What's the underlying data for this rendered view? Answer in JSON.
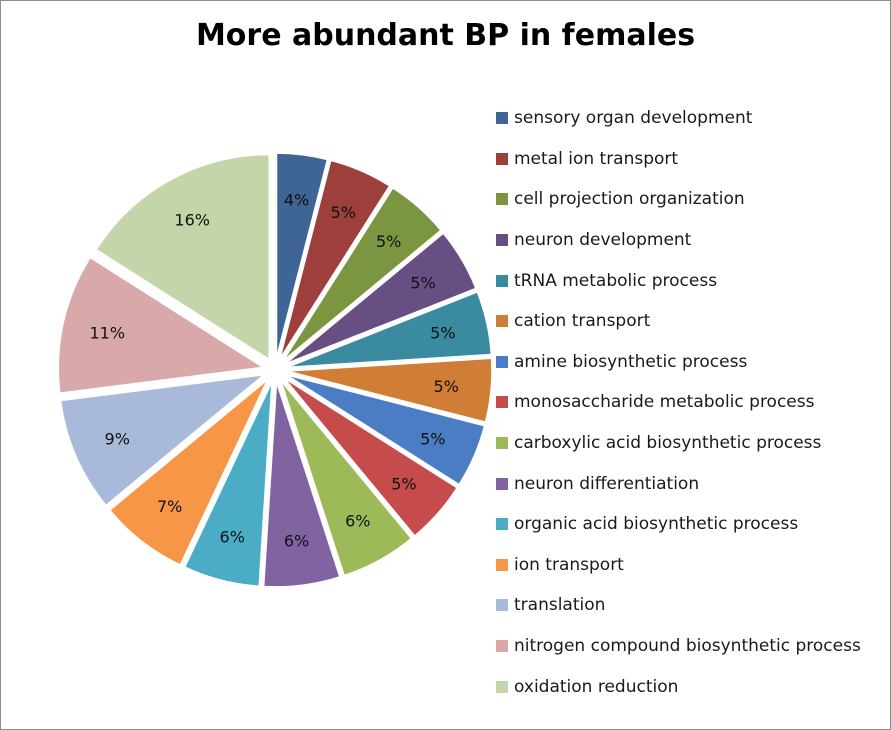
{
  "chart_data": {
    "type": "pie",
    "title": "More abundant BP in females",
    "exploded": true,
    "legend_position": "right",
    "slices": [
      {
        "name": "sensory organ development",
        "value": 4,
        "label": "4%",
        "color": "#3e6596"
      },
      {
        "name": "metal ion transport",
        "value": 5,
        "label": "5%",
        "color": "#9d3f3c"
      },
      {
        "name": "cell projection organization",
        "value": 5,
        "label": "5%",
        "color": "#7b9541"
      },
      {
        "name": "neuron development",
        "value": 5,
        "label": "5%",
        "color": "#674f84"
      },
      {
        "name": "tRNA metabolic process",
        "value": 5,
        "label": "5%",
        "color": "#3a8aa0"
      },
      {
        "name": "cation transport",
        "value": 5,
        "label": "5%",
        "color": "#d07d36"
      },
      {
        "name": "amine biosynthetic process",
        "value": 5,
        "label": "5%",
        "color": "#4a7dc4"
      },
      {
        "name": "monosaccharide metabolic process",
        "value": 5,
        "label": "5%",
        "color": "#c54c4a"
      },
      {
        "name": "carboxylic acid biosynthetic process",
        "value": 6,
        "label": "6%",
        "color": "#9cbb58"
      },
      {
        "name": "neuron differentiation",
        "value": 6,
        "label": "6%",
        "color": "#8163a2"
      },
      {
        "name": "organic acid biosynthetic process",
        "value": 6,
        "label": "6%",
        "color": "#4bacc6"
      },
      {
        "name": "ion transport",
        "value": 7,
        "label": "7%",
        "color": "#f79646"
      },
      {
        "name": "translation",
        "value": 9,
        "label": "9%",
        "color": "#a9b9d9"
      },
      {
        "name": "nitrogen compound biosynthetic process",
        "value": 11,
        "label": "11%",
        "color": "#d9a9a9"
      },
      {
        "name": "oxidation reduction",
        "value": 16,
        "label": "16%",
        "color": "#c4d6a9"
      }
    ]
  }
}
